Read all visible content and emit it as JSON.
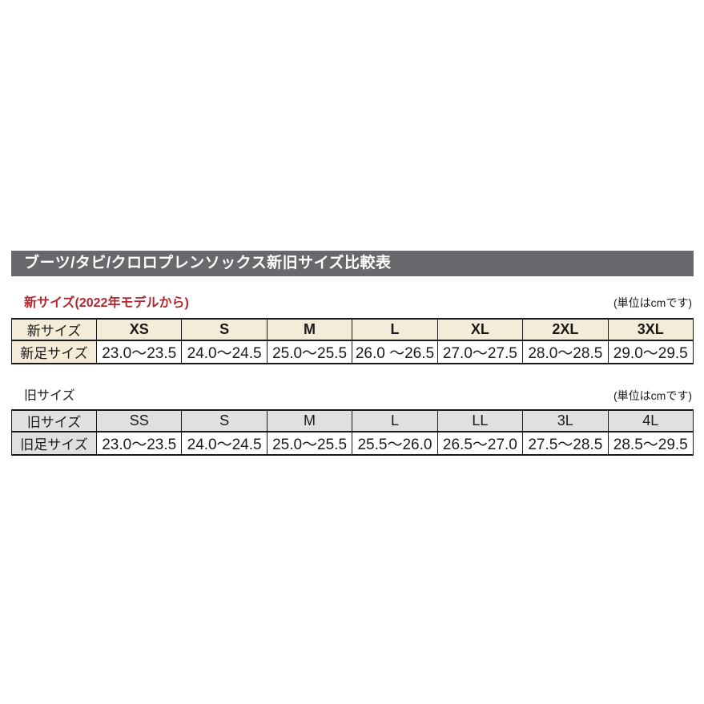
{
  "page": {
    "header_bar": {
      "title": "ブーツ/タビ/クロロプレンソックス新旧サイズ比較表"
    },
    "colors": {
      "header_bar_bg": "#69686c",
      "header_bar_text": "#ffffff",
      "accent_red": "#b2282e",
      "new_table_header_bg": "#f3ecd8",
      "old_table_header_bg": "#e0e0e0",
      "table_border": "#1a1a1a",
      "page_bg": "#ffffff"
    },
    "new_section": {
      "title": "新サイズ(2022年モデルから)",
      "unit_note": "(単位はcmです)",
      "table": {
        "size_row_label": "新サイズ",
        "foot_row_label": "新足サイズ",
        "sizes": [
          "XS",
          "S",
          "M",
          "L",
          "XL",
          "2XL",
          "3XL"
        ],
        "ranges": [
          "23.0〜23.5",
          "24.0〜24.5",
          "25.0〜25.5",
          "26.0 〜26.5",
          "27.0〜27.5",
          "28.0〜28.5",
          "29.0〜29.5"
        ]
      }
    },
    "old_section": {
      "title": "旧サイズ",
      "unit_note": "(単位はcmです)",
      "table": {
        "size_row_label": "旧サイズ",
        "foot_row_label": "旧足サイズ",
        "sizes": [
          "SS",
          "S",
          "M",
          "L",
          "LL",
          "3L",
          "4L"
        ],
        "ranges": [
          "23.0〜23.5",
          "24.0〜24.5",
          "25.0〜25.5",
          "25.5〜26.0",
          "26.5〜27.0",
          "27.5〜28.5",
          "28.5〜29.5"
        ]
      }
    }
  }
}
